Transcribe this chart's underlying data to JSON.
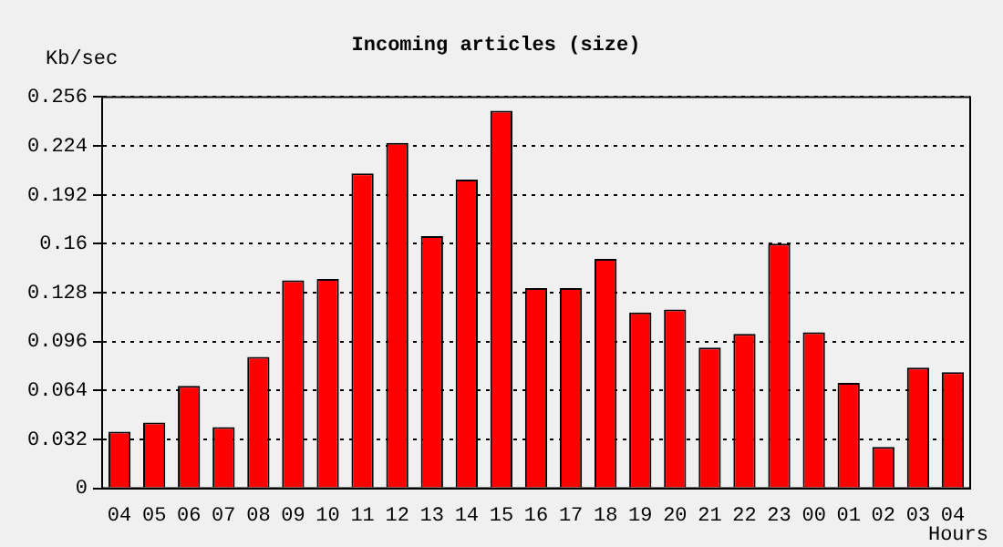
{
  "chart_data": {
    "type": "bar",
    "title": "Incoming articles (size)",
    "xlabel": "Hours",
    "ylabel": "Kb/sec",
    "categories": [
      "04",
      "05",
      "06",
      "07",
      "08",
      "09",
      "10",
      "11",
      "12",
      "13",
      "14",
      "15",
      "16",
      "17",
      "18",
      "19",
      "20",
      "21",
      "22",
      "23",
      "00",
      "01",
      "02",
      "03",
      "04"
    ],
    "values": [
      0.037,
      0.043,
      0.067,
      0.04,
      0.086,
      0.136,
      0.137,
      0.206,
      0.226,
      0.165,
      0.202,
      0.247,
      0.131,
      0.131,
      0.15,
      0.115,
      0.117,
      0.092,
      0.101,
      0.16,
      0.102,
      0.069,
      0.027,
      0.079,
      0.076
    ],
    "color": "#ff0000",
    "ylim": [
      0,
      0.256
    ],
    "yticks": [
      0,
      0.032,
      0.064,
      0.096,
      0.128,
      0.16,
      0.192,
      0.224,
      0.256
    ],
    "grid": "y"
  }
}
